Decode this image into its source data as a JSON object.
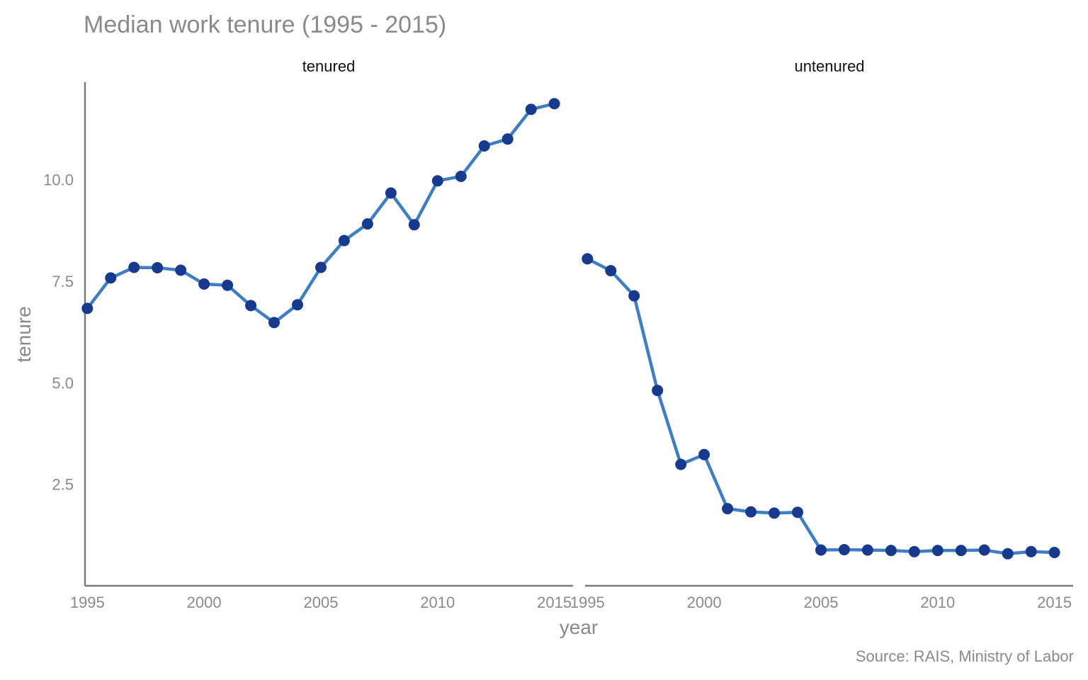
{
  "chart_data": {
    "type": "line",
    "title": "Median work tenure (1995 - 2015)",
    "xlabel": "year",
    "ylabel": "tenure",
    "caption": "Source: RAIS, Ministry of Labor",
    "xlim": [
      1994.9,
      2015.8
    ],
    "ylim": [
      0.0,
      12.4
    ],
    "x_ticks": [
      "1995",
      "2000",
      "2005",
      "2010",
      "2015"
    ],
    "y_ticks": [
      "2.5",
      "5.0",
      "7.5",
      "10.0"
    ],
    "grid": false,
    "legend": "none",
    "colors": {
      "line": "#3f7fc1",
      "point": "#173a8c",
      "axis": "#7a7a7a",
      "text": "#8a8a8a"
    },
    "panels": [
      {
        "name": "tenured",
        "x": [
          1995,
          1996,
          1997,
          1998,
          1999,
          2000,
          2001,
          2002,
          2003,
          2004,
          2005,
          2006,
          2007,
          2008,
          2009,
          2010,
          2011,
          2012,
          2013,
          2014,
          2015
        ],
        "y": [
          6.83,
          7.58,
          7.84,
          7.83,
          7.77,
          7.43,
          7.4,
          6.9,
          6.48,
          6.92,
          7.84,
          8.5,
          8.91,
          9.67,
          8.89,
          9.97,
          10.08,
          10.83,
          11.0,
          11.73,
          11.87
        ]
      },
      {
        "name": "untenured",
        "x": [
          1995,
          1996,
          1997,
          1998,
          1999,
          2000,
          2001,
          2002,
          2003,
          2004,
          2005,
          2006,
          2007,
          2008,
          2009,
          2010,
          2011,
          2012,
          2013,
          2014,
          2015
        ],
        "y": [
          8.05,
          7.76,
          7.14,
          4.81,
          2.99,
          3.23,
          1.9,
          1.82,
          1.79,
          1.81,
          0.88,
          0.89,
          0.88,
          0.87,
          0.84,
          0.87,
          0.87,
          0.88,
          0.79,
          0.84,
          0.82
        ]
      }
    ]
  }
}
